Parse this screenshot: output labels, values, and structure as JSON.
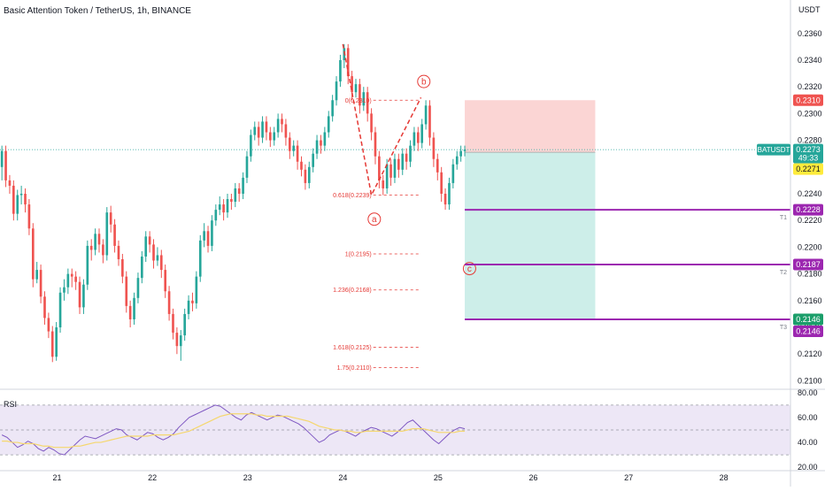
{
  "header": {
    "symbol_title": "Basic Attention Token / TetherUS, 1h, BINANCE",
    "currency": "USDT"
  },
  "colors": {
    "up": "#26a69a",
    "down": "#ef5350",
    "fib": "#e53935",
    "target": "#9c27b0",
    "stop_zone": "#fbd5d4",
    "profit_zone": "#cdeee9",
    "rsi_line": "#7e57c2",
    "rsi_ma": "#f5d76e",
    "rsi_band": "#ede7f6"
  },
  "chart_data": [
    {
      "type": "candlestick",
      "title": "Basic Attention Token / TetherUS, 1h, BINANCE",
      "y_axis_ticks": [
        "0.2360",
        "0.2340",
        "0.2320",
        "0.2300",
        "0.2280",
        "0.2260",
        "0.2240",
        "0.2220",
        "0.2200",
        "0.2180",
        "0.2160",
        "0.2140",
        "0.2120",
        "0.2100"
      ],
      "ylim": [
        0.2095,
        0.2385
      ],
      "x_axis_ticks": [
        "21",
        "22",
        "23",
        "24",
        "25",
        "26",
        "27",
        "28"
      ],
      "xlim": [
        20.4,
        28.7
      ],
      "last_price": {
        "label": "BATUSDT",
        "value": "0.2273",
        "countdown": "49:33",
        "line_value": 0.2273
      },
      "price_tags": [
        {
          "value": "0.2310",
          "color": "#ef5350"
        },
        {
          "value": "0.2271",
          "color": "#ffeb3b"
        },
        {
          "value": "0.2228",
          "color": "#9c27b0"
        },
        {
          "value": "0.2187",
          "color": "#9c27b0"
        },
        {
          "value": "0.2146",
          "color": "#1b9e6a"
        },
        {
          "value": "0.2146",
          "color": "#9c27b0"
        }
      ],
      "fib_levels": [
        {
          "label": "0(0.2310)",
          "value": 0.231
        },
        {
          "label": "0.618(0.2239)",
          "value": 0.2239
        },
        {
          "label": "1(0.2195)",
          "value": 0.2195
        },
        {
          "label": "1.236(0.2168)",
          "value": 0.2168
        },
        {
          "label": "1.618(0.2125)",
          "value": 0.2125
        },
        {
          "label": "1.75(0.2110)",
          "value": 0.211
        }
      ],
      "targets": [
        {
          "label": "T1",
          "value": 0.2228
        },
        {
          "label": "T2",
          "value": 0.2187
        },
        {
          "label": "T3",
          "value": 0.2146
        }
      ],
      "position": {
        "entry": 0.2271,
        "stop": 0.231,
        "target": 0.2146,
        "x_start": 25.28,
        "x_end": 26.65
      },
      "wave_labels": [
        {
          "label": "a",
          "x": 24.33,
          "y": 0.2221
        },
        {
          "label": "b",
          "x": 24.85,
          "y": 0.2324
        },
        {
          "label": "c",
          "x": 25.33,
          "y": 0.2184
        }
      ],
      "wave_path": [
        [
          24.0,
          0.2352
        ],
        [
          24.3,
          0.2239
        ],
        [
          24.82,
          0.2312
        ]
      ],
      "candles": [
        [
          0.226,
          0.2272,
          0.225,
          0.2276
        ],
        [
          0.2272,
          0.225,
          0.2245,
          0.2276
        ],
        [
          0.225,
          0.2246,
          0.224,
          0.2254
        ],
        [
          0.2246,
          0.2225,
          0.222,
          0.225
        ],
        [
          0.2225,
          0.2239,
          0.222,
          0.2243
        ],
        [
          0.2239,
          0.224,
          0.2232,
          0.2246
        ],
        [
          0.224,
          0.2232,
          0.2226,
          0.2244
        ],
        [
          0.2232,
          0.2214,
          0.2209,
          0.2236
        ],
        [
          0.2214,
          0.2176,
          0.217,
          0.2218
        ],
        [
          0.2176,
          0.2183,
          0.2173,
          0.2189
        ],
        [
          0.2183,
          0.2163,
          0.2158,
          0.2187
        ],
        [
          0.2163,
          0.2147,
          0.2142,
          0.2167
        ],
        [
          0.2147,
          0.2137,
          0.2132,
          0.2151
        ],
        [
          0.2137,
          0.2118,
          0.2114,
          0.2141
        ],
        [
          0.2118,
          0.214,
          0.2115,
          0.2144
        ],
        [
          0.214,
          0.2166,
          0.2136,
          0.217
        ],
        [
          0.2166,
          0.217,
          0.216,
          0.2176
        ],
        [
          0.217,
          0.218,
          0.2165,
          0.2184
        ],
        [
          0.218,
          0.2178,
          0.217,
          0.2184
        ],
        [
          0.2178,
          0.2174,
          0.2168,
          0.2182
        ],
        [
          0.2174,
          0.2155,
          0.215,
          0.2178
        ],
        [
          0.2155,
          0.2172,
          0.215,
          0.2176
        ],
        [
          0.2172,
          0.2201,
          0.2168,
          0.2205
        ],
        [
          0.2201,
          0.2198,
          0.219,
          0.2206
        ],
        [
          0.2198,
          0.221,
          0.2194,
          0.2214
        ],
        [
          0.221,
          0.2202,
          0.2196,
          0.2214
        ],
        [
          0.2202,
          0.2194,
          0.2188,
          0.2206
        ],
        [
          0.2194,
          0.2226,
          0.219,
          0.223
        ],
        [
          0.2226,
          0.2217,
          0.2211,
          0.2231
        ],
        [
          0.2217,
          0.2201,
          0.2196,
          0.2221
        ],
        [
          0.2201,
          0.2191,
          0.2186,
          0.2205
        ],
        [
          0.2191,
          0.2178,
          0.2173,
          0.2195
        ],
        [
          0.2178,
          0.2156,
          0.2151,
          0.2182
        ],
        [
          0.2156,
          0.2146,
          0.214,
          0.216
        ],
        [
          0.2146,
          0.2162,
          0.2142,
          0.2166
        ],
        [
          0.2162,
          0.2177,
          0.2158,
          0.2181
        ],
        [
          0.2177,
          0.2193,
          0.2173,
          0.2197
        ],
        [
          0.2193,
          0.2208,
          0.2189,
          0.2212
        ],
        [
          0.2208,
          0.2202,
          0.2196,
          0.2212
        ],
        [
          0.2202,
          0.219,
          0.2184,
          0.2206
        ],
        [
          0.219,
          0.2194,
          0.2186,
          0.22
        ],
        [
          0.2194,
          0.2183,
          0.2177,
          0.2198
        ],
        [
          0.2183,
          0.2167,
          0.2162,
          0.2187
        ],
        [
          0.2167,
          0.215,
          0.2145,
          0.2171
        ],
        [
          0.215,
          0.2136,
          0.2131,
          0.2154
        ],
        [
          0.2136,
          0.2126,
          0.212,
          0.214
        ],
        [
          0.2126,
          0.2134,
          0.2115,
          0.2138
        ],
        [
          0.2134,
          0.215,
          0.213,
          0.2154
        ],
        [
          0.215,
          0.216,
          0.2146,
          0.2164
        ],
        [
          0.216,
          0.2158,
          0.2152,
          0.2166
        ],
        [
          0.2158,
          0.2178,
          0.2154,
          0.2182
        ],
        [
          0.2178,
          0.2205,
          0.2174,
          0.2209
        ],
        [
          0.2205,
          0.2212,
          0.22,
          0.2218
        ],
        [
          0.2212,
          0.2201,
          0.2196,
          0.2216
        ],
        [
          0.2201,
          0.222,
          0.2197,
          0.2224
        ],
        [
          0.222,
          0.2228,
          0.2216,
          0.2232
        ],
        [
          0.2228,
          0.2232,
          0.2224,
          0.2238
        ],
        [
          0.2232,
          0.2226,
          0.222,
          0.2236
        ],
        [
          0.2226,
          0.2236,
          0.2222,
          0.224
        ],
        [
          0.2236,
          0.2234,
          0.2228,
          0.224
        ],
        [
          0.2234,
          0.2244,
          0.223,
          0.2248
        ],
        [
          0.2244,
          0.224,
          0.2234,
          0.2248
        ],
        [
          0.224,
          0.2252,
          0.2236,
          0.2256
        ],
        [
          0.2252,
          0.2268,
          0.2248,
          0.2272
        ],
        [
          0.2268,
          0.2284,
          0.2264,
          0.2288
        ],
        [
          0.2284,
          0.229,
          0.228,
          0.2294
        ],
        [
          0.229,
          0.2282,
          0.2276,
          0.2294
        ],
        [
          0.2282,
          0.2294,
          0.2278,
          0.2298
        ],
        [
          0.2294,
          0.2286,
          0.228,
          0.2298
        ],
        [
          0.2286,
          0.228,
          0.2275,
          0.229
        ],
        [
          0.228,
          0.2286,
          0.2276,
          0.229
        ],
        [
          0.2286,
          0.2296,
          0.2282,
          0.23
        ],
        [
          0.2296,
          0.2292,
          0.2286,
          0.23
        ],
        [
          0.2292,
          0.2282,
          0.2276,
          0.2296
        ],
        [
          0.2282,
          0.2272,
          0.2266,
          0.2286
        ],
        [
          0.2272,
          0.2276,
          0.2268,
          0.228
        ],
        [
          0.2276,
          0.2264,
          0.2258,
          0.228
        ],
        [
          0.2264,
          0.2258,
          0.2253,
          0.2268
        ],
        [
          0.2258,
          0.2248,
          0.2243,
          0.2262
        ],
        [
          0.2248,
          0.226,
          0.2244,
          0.2264
        ],
        [
          0.226,
          0.227,
          0.2256,
          0.2274
        ],
        [
          0.227,
          0.228,
          0.2266,
          0.2284
        ],
        [
          0.228,
          0.2276,
          0.227,
          0.2284
        ],
        [
          0.2276,
          0.2286,
          0.2272,
          0.229
        ],
        [
          0.2286,
          0.2298,
          0.2282,
          0.2302
        ],
        [
          0.2298,
          0.231,
          0.2294,
          0.2314
        ],
        [
          0.231,
          0.2324,
          0.2306,
          0.2328
        ],
        [
          0.2324,
          0.234,
          0.232,
          0.2344
        ],
        [
          0.234,
          0.2349,
          0.2334,
          0.2352
        ],
        [
          0.2349,
          0.2328,
          0.2322,
          0.2352
        ],
        [
          0.2328,
          0.2316,
          0.231,
          0.2332
        ],
        [
          0.2316,
          0.2322,
          0.2312,
          0.2326
        ],
        [
          0.2322,
          0.2306,
          0.23,
          0.2326
        ],
        [
          0.2306,
          0.2316,
          0.2302,
          0.232
        ],
        [
          0.2316,
          0.23,
          0.2294,
          0.232
        ],
        [
          0.23,
          0.2286,
          0.228,
          0.2304
        ],
        [
          0.2286,
          0.2268,
          0.2262,
          0.229
        ],
        [
          0.2268,
          0.225,
          0.2244,
          0.2272
        ],
        [
          0.225,
          0.2244,
          0.2239,
          0.2254
        ],
        [
          0.2244,
          0.2262,
          0.224,
          0.2266
        ],
        [
          0.2262,
          0.2252,
          0.2246,
          0.2266
        ],
        [
          0.2252,
          0.2266,
          0.2248,
          0.227
        ],
        [
          0.2266,
          0.2258,
          0.2252,
          0.227
        ],
        [
          0.2258,
          0.227,
          0.2254,
          0.2274
        ],
        [
          0.227,
          0.2264,
          0.2258,
          0.2274
        ],
        [
          0.2264,
          0.2276,
          0.226,
          0.228
        ],
        [
          0.2276,
          0.2286,
          0.2272,
          0.229
        ],
        [
          0.2286,
          0.2278,
          0.2272,
          0.229
        ],
        [
          0.2278,
          0.2292,
          0.2274,
          0.2296
        ],
        [
          0.2292,
          0.2306,
          0.2288,
          0.231
        ],
        [
          0.2306,
          0.2282,
          0.2276,
          0.231
        ],
        [
          0.2282,
          0.2266,
          0.226,
          0.2286
        ],
        [
          0.2266,
          0.2256,
          0.225,
          0.227
        ],
        [
          0.2256,
          0.224,
          0.2234,
          0.226
        ],
        [
          0.224,
          0.2232,
          0.2228,
          0.2244
        ],
        [
          0.2232,
          0.2248,
          0.2228,
          0.2252
        ],
        [
          0.2248,
          0.2262,
          0.2244,
          0.2266
        ],
        [
          0.2262,
          0.2268,
          0.2258,
          0.2272
        ],
        [
          0.2268,
          0.2272,
          0.2264,
          0.2276
        ],
        [
          0.2272,
          0.2273,
          0.2268,
          0.2276
        ]
      ]
    },
    {
      "type": "line",
      "title": "RSI",
      "y_axis_ticks": [
        "80.00",
        "60.00",
        "40.00",
        "20.00"
      ],
      "ylim": [
        18,
        82
      ],
      "levels": [
        70,
        50,
        30
      ],
      "series": [
        {
          "values": [
            46,
            44,
            40,
            36,
            38,
            41,
            39,
            35,
            33,
            36,
            34,
            31,
            30,
            34,
            38,
            42,
            45,
            44,
            43,
            45,
            47,
            49,
            51,
            50,
            46,
            44,
            42,
            45,
            48,
            47,
            44,
            42,
            44,
            47,
            52,
            56,
            60,
            62,
            64,
            66,
            68,
            70,
            69,
            66,
            63,
            60,
            58,
            62,
            64,
            62,
            60,
            58,
            60,
            62,
            61,
            59,
            57,
            55,
            52,
            48,
            44,
            40,
            42,
            46,
            48,
            50,
            49,
            47,
            45,
            48,
            50,
            52,
            51,
            49,
            47,
            45,
            48,
            52,
            56,
            58,
            54,
            50,
            46,
            42,
            39,
            43,
            47,
            50,
            52,
            51
          ]
        },
        {
          "values": [
            41,
            41,
            40,
            40,
            39,
            39,
            39,
            38,
            37,
            37,
            36,
            36,
            36,
            36,
            37,
            37,
            38,
            39,
            40,
            40,
            41,
            42,
            43,
            44,
            45,
            45,
            45,
            45,
            45,
            46,
            46,
            46,
            46,
            46,
            47,
            48,
            49,
            51,
            53,
            55,
            57,
            59,
            61,
            62,
            63,
            63,
            63,
            63,
            63,
            62,
            62,
            61,
            61,
            61,
            61,
            61,
            60,
            59,
            58,
            57,
            55,
            53,
            52,
            51,
            50,
            50,
            49,
            49,
            48,
            48,
            49,
            49,
            49,
            49,
            49,
            49,
            49,
            49,
            50,
            51,
            51,
            51,
            50,
            49,
            48,
            48,
            48,
            48,
            49,
            49
          ]
        }
      ]
    }
  ]
}
